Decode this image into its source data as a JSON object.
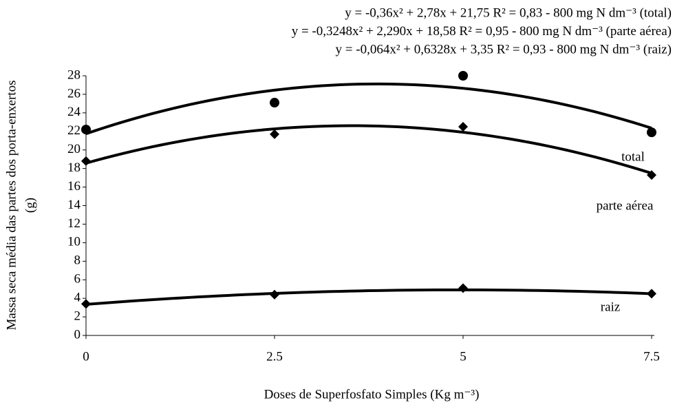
{
  "chart_data": {
    "type": "scatter",
    "x_label": "Doses de Superfosfato Simples (Kg m⁻³)",
    "y_label": [
      "Massa seca média das partes dos porta-enxertos",
      "(g)"
    ],
    "x": [
      0,
      2.5,
      5,
      7.5
    ],
    "xlim": [
      0,
      7.5
    ],
    "xticks": [
      0,
      2.5,
      5,
      7.5
    ],
    "ylim": [
      0,
      28
    ],
    "yticks": [
      0,
      2,
      4,
      6,
      8,
      10,
      12,
      14,
      16,
      18,
      20,
      22,
      24,
      26,
      28
    ],
    "series": [
      {
        "name": "total",
        "color": "#000000",
        "marker": "circle",
        "values": [
          22.2,
          25.1,
          28.0,
          21.9
        ],
        "fit": {
          "a": -0.36,
          "b": 2.78,
          "c": 21.75
        },
        "equation": "y = -0,36x² + 2,78x + 21,75  R² = 0,83  -  800 mg N dm⁻³ (total)"
      },
      {
        "name": "parte aérea",
        "color": "#000000",
        "marker": "diamond",
        "values": [
          18.8,
          21.7,
          22.5,
          17.3
        ],
        "fit": {
          "a": -0.3248,
          "b": 2.29,
          "c": 18.58
        },
        "equation": "y = -0,3248x² + 2,290x + 18,58  R² = 0,95  -  800 mg N dm⁻³ (parte aérea)"
      },
      {
        "name": "raiz",
        "color": "#000000",
        "marker": "diamond",
        "values": [
          3.4,
          4.4,
          5.1,
          4.5
        ],
        "fit": {
          "a": -0.064,
          "b": 0.6328,
          "c": 3.35
        },
        "equation": "y = -0,064x² + 0,6328x + 3,35  R² = 0,93  -  800 mg N dm⁻³ (raiz)"
      }
    ]
  }
}
